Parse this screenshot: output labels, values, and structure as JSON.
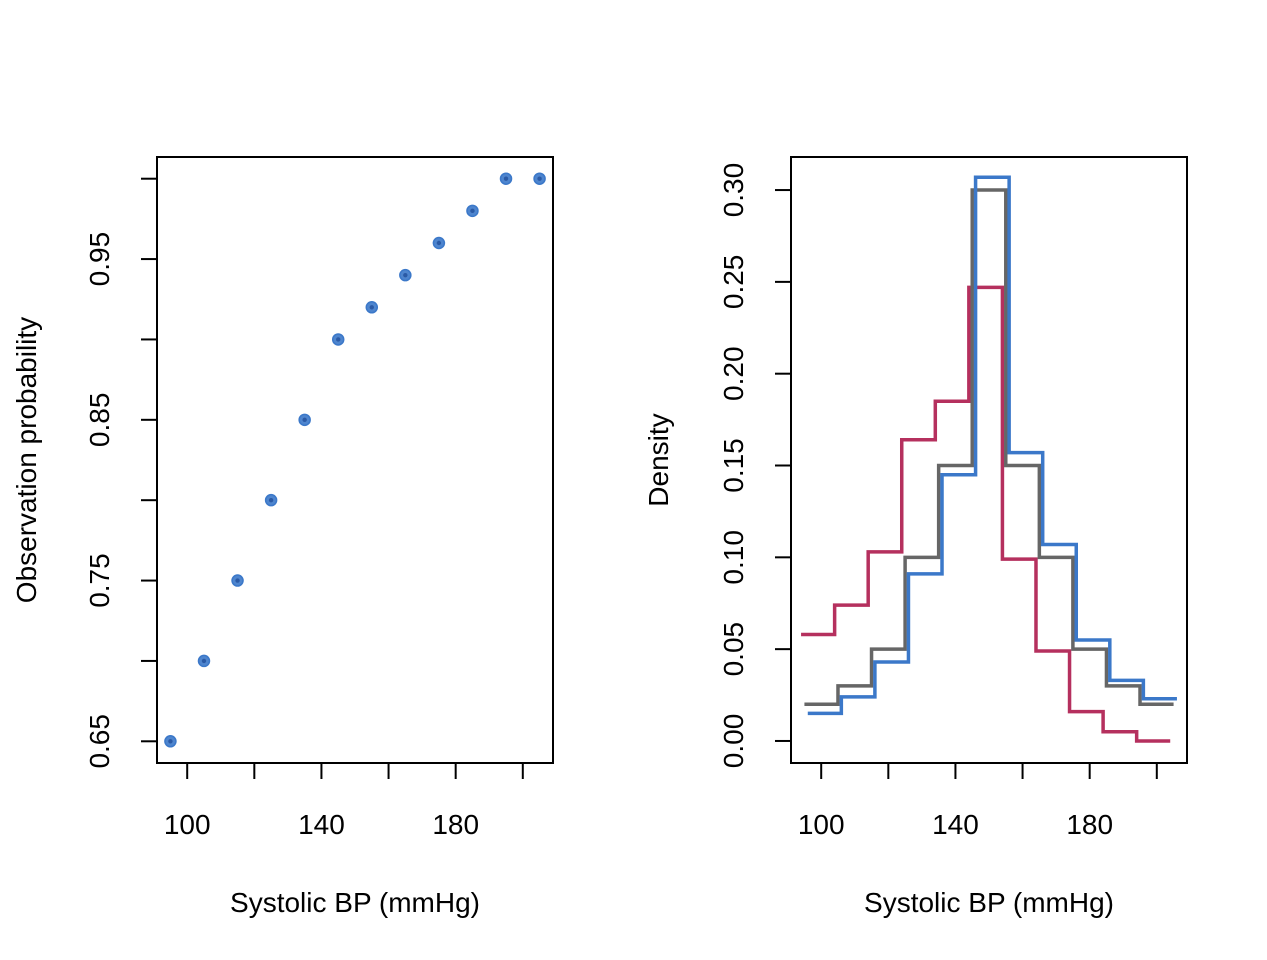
{
  "chart_data": [
    {
      "type": "scatter",
      "title": "",
      "xlabel": "Systolic BP (mmHg)",
      "ylabel": "Observation probability",
      "xlim": [
        91,
        209
      ],
      "ylim": [
        0.6365,
        1.0135
      ],
      "xticks": [
        100,
        120,
        140,
        160,
        180,
        200
      ],
      "xtick_labels": [
        "100",
        "",
        "140",
        "",
        "180",
        ""
      ],
      "yticks": [
        0.65,
        0.7,
        0.75,
        0.8,
        0.85,
        0.9,
        0.95,
        1.0
      ],
      "ytick_labels": [
        "0.65",
        "",
        "0.75",
        "",
        "0.85",
        "",
        "0.95",
        ""
      ],
      "grid": false,
      "colors": {
        "point": "#3b78c9"
      },
      "x": [
        95,
        105,
        115,
        125,
        135,
        145,
        155,
        165,
        175,
        185,
        195,
        205
      ],
      "y": [
        0.65,
        0.7,
        0.75,
        0.8,
        0.85,
        0.9,
        0.92,
        0.94,
        0.96,
        0.98,
        1.0,
        1.0
      ]
    },
    {
      "type": "line",
      "step": true,
      "title": "",
      "xlabel": "Systolic BP (mmHg)",
      "ylabel": "Density",
      "xlim": [
        91,
        209
      ],
      "ylim": [
        -0.012,
        0.318
      ],
      "xticks": [
        100,
        120,
        140,
        160,
        180,
        200
      ],
      "xtick_labels": [
        "100",
        "",
        "140",
        "",
        "180",
        ""
      ],
      "yticks": [
        0.0,
        0.05,
        0.1,
        0.15,
        0.2,
        0.25,
        0.3
      ],
      "ytick_labels": [
        "0.00",
        "0.05",
        "0.10",
        "0.15",
        "0.20",
        "0.25",
        "0.30"
      ],
      "grid": false,
      "series": [
        {
          "color": "#b5305e",
          "x": [
            94,
            104,
            114,
            124,
            134,
            144,
            154,
            164,
            174,
            184,
            194,
            204
          ],
          "values": [
            0.058,
            0.074,
            0.103,
            0.164,
            0.185,
            0.247,
            0.099,
            0.049,
            0.016,
            0.005,
            0.0,
            0.0
          ]
        },
        {
          "color": "#666666",
          "x": [
            95,
            105,
            115,
            125,
            135,
            145,
            155,
            165,
            175,
            185,
            195,
            205
          ],
          "values": [
            0.02,
            0.03,
            0.05,
            0.1,
            0.15,
            0.3,
            0.15,
            0.1,
            0.05,
            0.03,
            0.02,
            0.02
          ]
        },
        {
          "color": "#3b78c9",
          "x": [
            96,
            106,
            116,
            126,
            136,
            146,
            156,
            166,
            176,
            186,
            196,
            206
          ],
          "values": [
            0.015,
            0.024,
            0.043,
            0.091,
            0.145,
            0.307,
            0.157,
            0.107,
            0.055,
            0.033,
            0.023,
            0.023
          ]
        }
      ]
    }
  ]
}
